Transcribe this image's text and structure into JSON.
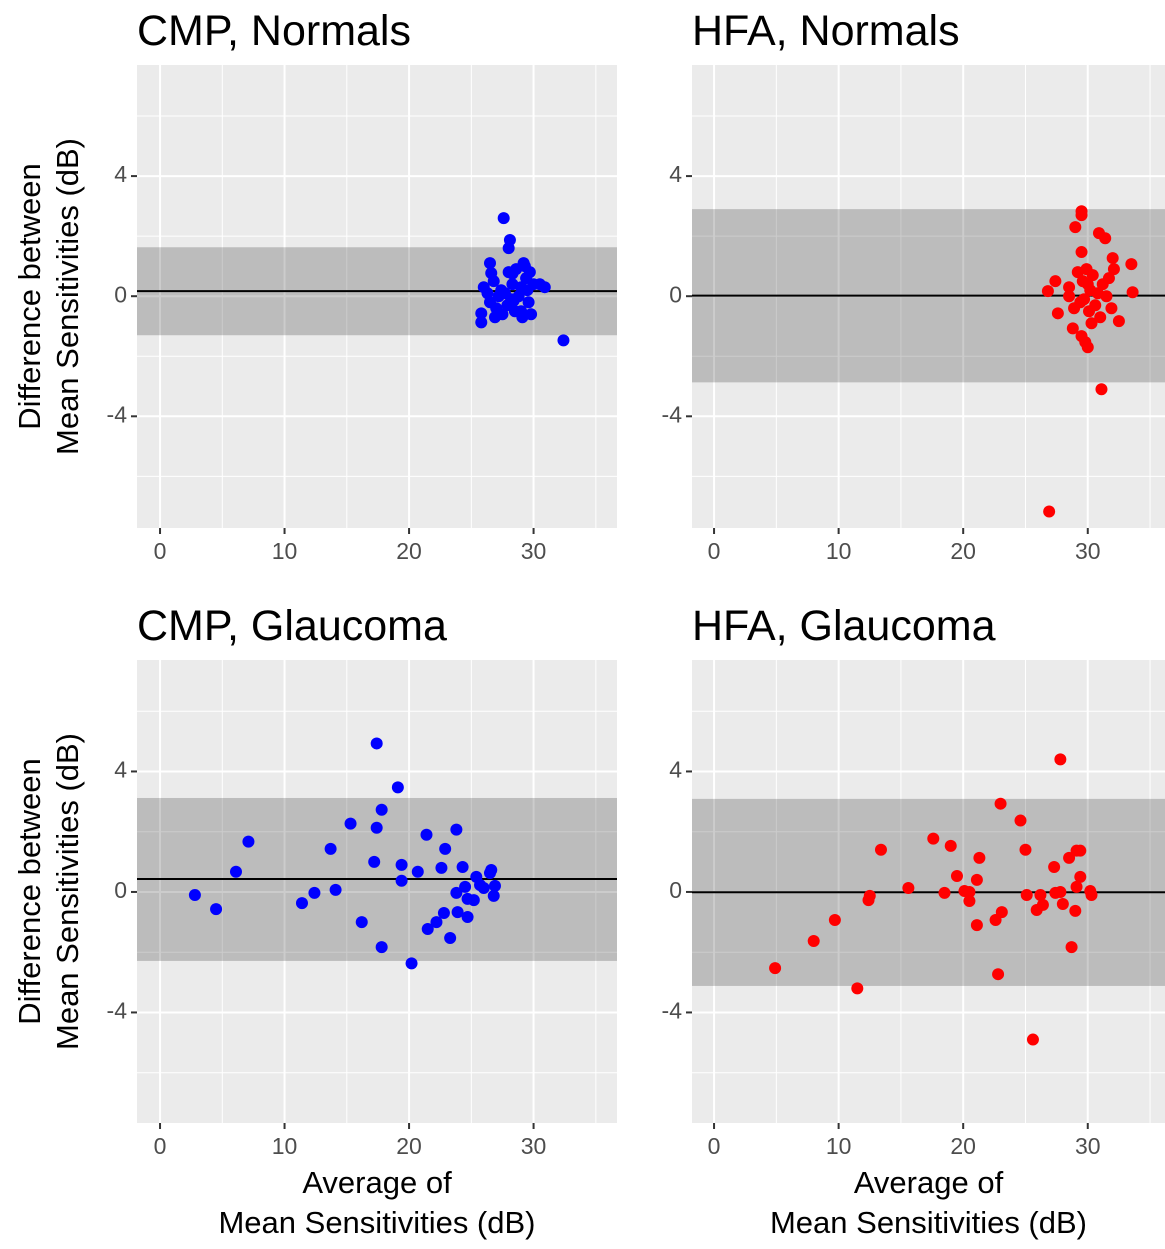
{
  "chart_data": [
    {
      "type": "scatter",
      "title": "CMP, Normals",
      "ylabel": [
        "Difference between",
        "Mean Sensitivities (dB)"
      ],
      "color": "#0000ff",
      "x": [
        26.0,
        26.3,
        26.5,
        26.8,
        27.0,
        27.2,
        27.4,
        27.5,
        27.7,
        27.9,
        28.0,
        28.2,
        28.3,
        28.5,
        28.6,
        28.8,
        29.0,
        29.1,
        29.3,
        29.4,
        29.5,
        29.6,
        29.7,
        29.8,
        30.0,
        30.5,
        30.9,
        27.6,
        28.0,
        28.1,
        26.5,
        26.6,
        32.4,
        25.8,
        25.8,
        28.3,
        29.0,
        26.9,
        29.2,
        28.4
      ],
      "values": [
        0.3,
        0.1,
        -0.2,
        0.5,
        -0.4,
        0.0,
        0.2,
        -0.6,
        0.1,
        -0.3,
        0.8,
        -0.1,
        0.4,
        -0.5,
        0.9,
        0.0,
        0.3,
        -0.7,
        1.0,
        0.6,
        0.2,
        -0.2,
        0.8,
        -0.6,
        0.4,
        0.4,
        0.3,
        2.6,
        1.6,
        1.87,
        1.1,
        0.77,
        -1.47,
        -0.57,
        -0.87,
        0.75,
        -0.5,
        -0.7,
        1.1,
        -0.15
      ],
      "mean_line": 0.17,
      "band": [
        -1.3,
        1.63
      ],
      "xlim": [
        -1.85,
        36.7
      ],
      "ylim": [
        -7.72,
        7.7
      ],
      "xticks": [
        0,
        10,
        20,
        30
      ],
      "yticks": [
        -4,
        0,
        4
      ],
      "grid": true
    },
    {
      "type": "scatter",
      "title": "HFA, Normals",
      "color": "#ff0000",
      "x": [
        29.5,
        29.5,
        30.9,
        31.4,
        29.0,
        29.5,
        32.0,
        33.5,
        27.4,
        26.8,
        27.6,
        28.5,
        28.8,
        29.5,
        29.8,
        30.0,
        31.1,
        26.9,
        33.6,
        32.5,
        28.5,
        28.9,
        29.2,
        29.4,
        29.6,
        29.9,
        30.1,
        30.2,
        30.4,
        30.6,
        30.8,
        31.0,
        31.2,
        31.5,
        31.7,
        31.9,
        32.1,
        30.3,
        29.7,
        30.0
      ],
      "values": [
        2.83,
        2.7,
        2.1,
        1.93,
        2.3,
        1.47,
        1.27,
        1.07,
        0.5,
        0.17,
        -0.57,
        0,
        -1.07,
        -1.33,
        -1.53,
        -1.7,
        -3.1,
        -7.17,
        0.13,
        -0.83,
        0.3,
        -0.4,
        0.8,
        -0.2,
        0.5,
        0.9,
        -0.5,
        0.2,
        0.7,
        -0.3,
        0.1,
        -0.7,
        0.4,
        0.0,
        0.6,
        -0.4,
        0.9,
        -0.9,
        -0.1,
        0.4
      ],
      "mean_line": 0.02,
      "band": [
        -2.87,
        2.9
      ],
      "xlim": [
        -1.77,
        36.2
      ],
      "ylim": [
        -7.72,
        7.7
      ],
      "xticks": [
        0,
        10,
        20,
        30
      ],
      "yticks": [
        -4,
        0,
        4
      ],
      "grid": true
    },
    {
      "type": "scatter",
      "title": "CMP, Glaucoma",
      "ylabel": [
        "Difference between",
        "Mean Sensitivities (dB)"
      ],
      "xlabel": [
        "Average of",
        "Mean Sensitivities (dB)"
      ],
      "color": "#0000ff",
      "x": [
        2.8,
        4.5,
        6.1,
        7.1,
        11.4,
        12.4,
        13.7,
        14.1,
        15.3,
        16.2,
        17.2,
        17.4,
        17.4,
        17.8,
        17.8,
        19.1,
        19.4,
        19.4,
        20.2,
        20.7,
        21.4,
        21.5,
        22.2,
        22.6,
        22.8,
        22.9,
        23.3,
        23.8,
        23.8,
        23.9,
        24.3,
        24.5,
        24.7,
        24.7,
        25.2,
        25.4,
        25.7,
        26.0,
        26.5,
        26.8,
        26.9,
        26.6
      ],
      "values": [
        -0.1,
        -0.57,
        0.67,
        1.67,
        -0.37,
        -0.03,
        1.43,
        0.07,
        2.27,
        -1.0,
        1.0,
        4.93,
        2.13,
        2.73,
        -1.83,
        3.47,
        0.9,
        0.37,
        -2.37,
        0.67,
        1.9,
        -1.23,
        -1.0,
        0.8,
        -0.7,
        1.43,
        -1.53,
        2.07,
        -0.03,
        -0.67,
        0.83,
        0.17,
        -0.83,
        -0.23,
        -0.27,
        0.5,
        0.23,
        0.13,
        0.63,
        -0.13,
        0.2,
        0.73
      ],
      "mean_line": 0.43,
      "band": [
        -2.29,
        3.12
      ],
      "xlim": [
        -1.85,
        36.7
      ],
      "ylim": [
        -7.67,
        7.7
      ],
      "xticks": [
        0,
        10,
        20,
        30
      ],
      "yticks": [
        -4,
        0,
        4
      ],
      "grid": true
    },
    {
      "type": "scatter",
      "title": "HFA, Glaucoma",
      "xlabel": [
        "Average of",
        "Mean Sensitivities (dB)"
      ],
      "color": "#ff0000",
      "x": [
        4.9,
        8.0,
        9.7,
        11.5,
        12.4,
        12.5,
        13.4,
        15.6,
        17.6,
        18.5,
        19.0,
        19.5,
        20.1,
        20.5,
        20.5,
        21.1,
        21.3,
        21.1,
        22.6,
        22.8,
        23.0,
        23.1,
        24.6,
        25.0,
        25.1,
        25.6,
        25.9,
        26.2,
        26.4,
        27.3,
        27.4,
        27.8,
        27.8,
        28.0,
        28.5,
        28.7,
        29.0,
        29.1,
        29.1,
        29.4,
        29.4,
        30.2,
        30.3
      ],
      "values": [
        -2.53,
        -1.63,
        -0.93,
        -3.2,
        -0.27,
        -0.13,
        1.4,
        0.13,
        1.77,
        -0.03,
        1.53,
        0.53,
        0.03,
        0,
        -0.3,
        0.4,
        1.13,
        -1.1,
        -0.93,
        -2.73,
        2.93,
        -0.67,
        2.37,
        1.4,
        -0.1,
        -4.9,
        -0.6,
        -0.1,
        -0.43,
        0.83,
        -0.03,
        4.4,
        0,
        -0.4,
        1.13,
        -1.83,
        -0.63,
        1.37,
        0.17,
        1.37,
        0.5,
        0.03,
        -0.1
      ],
      "mean_line": -0.01,
      "band": [
        -3.12,
        3.09
      ],
      "xlim": [
        -1.77,
        36.2
      ],
      "ylim": [
        -7.67,
        7.7
      ],
      "xticks": [
        0,
        10,
        20,
        30
      ],
      "yticks": [
        -4,
        0,
        4
      ],
      "grid": true
    }
  ]
}
